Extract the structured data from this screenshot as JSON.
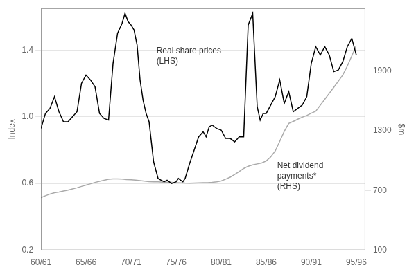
{
  "chart_data": {
    "type": "line",
    "ylabel": "Index",
    "y2label": "$m",
    "xlim": [
      0,
      36
    ],
    "xticks": [
      {
        "value": 0,
        "label": "60/61"
      },
      {
        "value": 5,
        "label": "65/66"
      },
      {
        "value": 10,
        "label": "70/71"
      },
      {
        "value": 15,
        "label": "75/76"
      },
      {
        "value": 20,
        "label": "80/81"
      },
      {
        "value": 25,
        "label": "85/86"
      },
      {
        "value": 30,
        "label": "90/91"
      },
      {
        "value": 35,
        "label": "95/96"
      }
    ],
    "ylim": [
      0.2,
      1.65
    ],
    "yticks": [
      0.2,
      0.6,
      {
        "value": 1.0,
        "label": "1.0"
      },
      1.4
    ],
    "y2lim": [
      100,
      2533
    ],
    "y2ticks": [
      100,
      700,
      1300,
      1900
    ],
    "grid": "y",
    "series": [
      {
        "name": "Real share prices\n(LHS)",
        "color": "#000000",
        "x": [
          0,
          0.5,
          1,
          1.5,
          2,
          2.5,
          3,
          3.5,
          4,
          4.5,
          5,
          5.5,
          6,
          6.5,
          7,
          7.5,
          8,
          8.5,
          9,
          9.33,
          9.67,
          10,
          10.33,
          10.67,
          11,
          11.33,
          11.67,
          12,
          12.5,
          13,
          13.33,
          13.67,
          14,
          14.5,
          15,
          15.25,
          15.5,
          15.75,
          16,
          16.5,
          17,
          17.5,
          18,
          18.33,
          18.67,
          19,
          19.5,
          20,
          20.5,
          21,
          21.5,
          22,
          22.5,
          23,
          23.5,
          24,
          24.33,
          24.67,
          25,
          25.5,
          26,
          26.5,
          27,
          27.5,
          28,
          28.5,
          29,
          29.5,
          30,
          30.5,
          31,
          31.5,
          32,
          32.5,
          33,
          33.5,
          34,
          34.5,
          35
        ],
        "values": [
          0.93,
          1.02,
          1.05,
          1.12,
          1.03,
          0.97,
          0.97,
          1.0,
          1.03,
          1.2,
          1.25,
          1.22,
          1.18,
          1.02,
          0.99,
          0.98,
          1.32,
          1.5,
          1.56,
          1.62,
          1.57,
          1.55,
          1.52,
          1.43,
          1.22,
          1.1,
          1.02,
          0.97,
          0.73,
          0.63,
          0.62,
          0.61,
          0.62,
          0.6,
          0.61,
          0.63,
          0.62,
          0.61,
          0.63,
          0.72,
          0.8,
          0.88,
          0.91,
          0.88,
          0.94,
          0.95,
          0.93,
          0.92,
          0.87,
          0.87,
          0.85,
          0.88,
          0.88,
          1.55,
          1.62,
          1.06,
          0.98,
          1.02,
          1.02,
          1.07,
          1.12,
          1.22,
          1.08,
          1.15,
          1.03,
          1.05,
          1.07,
          1.12,
          1.32,
          1.42,
          1.37,
          1.42,
          1.37,
          1.27,
          1.28,
          1.33,
          1.42,
          1.47,
          1.37
        ]
      },
      {
        "name": "Net dividend\npayments*\n(RHS)",
        "color": "#aaaaaa",
        "axis": "y2",
        "x": [
          0,
          0.5,
          1,
          1.5,
          2,
          2.5,
          3,
          3.5,
          4,
          4.5,
          5,
          5.5,
          6,
          6.5,
          7,
          7.5,
          8,
          8.5,
          9,
          9.5,
          10,
          10.5,
          11,
          11.5,
          12,
          12.5,
          13,
          13.5,
          14,
          14.5,
          15,
          15.5,
          16,
          16.5,
          17,
          17.5,
          18,
          18.5,
          19,
          19.5,
          20,
          20.5,
          21,
          21.5,
          22,
          22.5,
          23,
          23.5,
          24,
          24.5,
          25,
          25.5,
          26,
          26.5,
          27,
          27.5,
          28,
          28.5,
          29,
          29.5,
          30,
          30.5,
          31,
          31.5,
          32,
          32.5,
          33,
          33.5,
          34,
          34.5,
          35
        ],
        "values": [
          630,
          648,
          665,
          678,
          685,
          695,
          705,
          716,
          728,
          742,
          755,
          768,
          782,
          793,
          803,
          814,
          818,
          818,
          815,
          810,
          808,
          806,
          800,
          795,
          790,
          788,
          788,
          785,
          784,
          782,
          780,
          778,
          775,
          774,
          776,
          778,
          780,
          780,
          783,
          788,
          797,
          815,
          835,
          862,
          892,
          922,
          945,
          958,
          968,
          978,
          998,
          1038,
          1098,
          1195,
          1295,
          1375,
          1395,
          1418,
          1438,
          1455,
          1478,
          1498,
          1558,
          1618,
          1678,
          1738,
          1800,
          1862,
          1952,
          2055,
          2160
        ]
      }
    ]
  }
}
